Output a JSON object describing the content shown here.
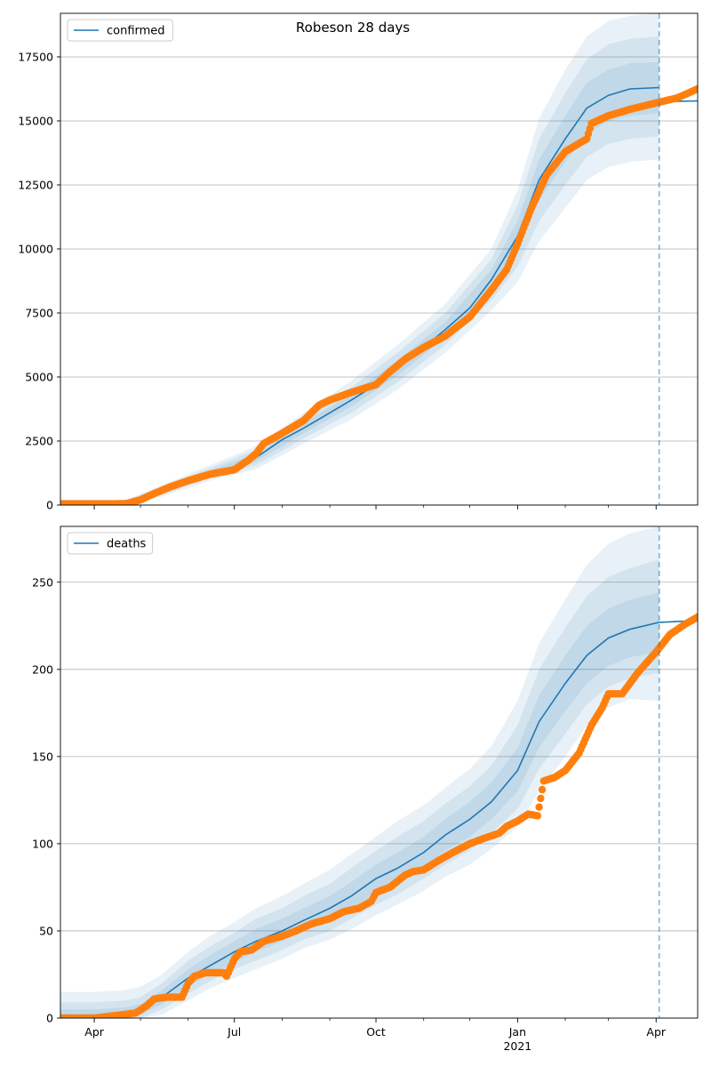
{
  "figure": {
    "title": "Robeson 28 days"
  },
  "colors": {
    "model_line": "#1f77b4",
    "observed_points": "#ff7f0e",
    "band": "#1f77b4",
    "grid": "#b0b0b0",
    "forecast_marker": "#1f77b4"
  },
  "chart_data": [
    {
      "type": "line",
      "panel": "top",
      "legend_entry": "confirmed",
      "legend_location": "upper-left",
      "grid": "horizontal",
      "ylim": [
        0,
        19200
      ],
      "yticks": [
        0,
        2500,
        5000,
        7500,
        10000,
        12500,
        15000,
        17500
      ],
      "ytick_labels": [
        "0",
        "2500",
        "5000",
        "7500",
        "10000",
        "12500",
        "15000",
        "17500"
      ],
      "xlim": [
        "2020-03-10",
        "2021-04-28"
      ],
      "xticks": [
        {
          "date": "2020-04-01",
          "label": "Apr"
        },
        {
          "date": "2020-07-01",
          "label": "Jul"
        },
        {
          "date": "2020-10-01",
          "label": "Oct"
        },
        {
          "date": "2021-01-01",
          "label": "Jan",
          "sublabel": "2021"
        },
        {
          "date": "2021-04-01",
          "label": "Apr"
        }
      ],
      "minor_xticks": [
        "2020-05-01",
        "2020-06-01",
        "2020-08-01",
        "2020-09-01",
        "2020-11-01",
        "2020-12-01",
        "2021-02-01",
        "2021-03-01",
        "2021-05-01"
      ],
      "forecast_start": "2021-04-03",
      "model": {
        "x": [
          "2020-03-10",
          "2020-04-01",
          "2020-04-20",
          "2020-05-01",
          "2020-05-15",
          "2020-06-01",
          "2020-06-15",
          "2020-07-01",
          "2020-07-15",
          "2020-08-01",
          "2020-08-15",
          "2020-09-01",
          "2020-09-15",
          "2020-10-01",
          "2020-10-15",
          "2020-11-01",
          "2020-11-15",
          "2020-12-01",
          "2020-12-15",
          "2021-01-01",
          "2021-01-15",
          "2021-02-01",
          "2021-02-15",
          "2021-03-01",
          "2021-03-15",
          "2021-04-03",
          "2021-04-28"
        ],
        "y": [
          30,
          40,
          70,
          250,
          550,
          950,
          1250,
          1500,
          1850,
          2550,
          3000,
          3600,
          4100,
          4700,
          5350,
          6150,
          6850,
          7700,
          8800,
          10500,
          12700,
          14300,
          15500,
          16000,
          16250,
          16300,
          15800
        ]
      },
      "bands": {
        "x": [
          "2020-04-20",
          "2020-05-15",
          "2020-06-15",
          "2020-07-15",
          "2020-08-15",
          "2020-09-15",
          "2020-10-15",
          "2020-11-15",
          "2020-12-15",
          "2021-01-01",
          "2021-01-15",
          "2021-02-01",
          "2021-02-15",
          "2021-03-01",
          "2021-03-15",
          "2021-04-03"
        ],
        "inner_low": [
          30,
          480,
          1150,
          1700,
          2800,
          3850,
          5050,
          6550,
          8400,
          9900,
          11900,
          13400,
          14500,
          15000,
          15200,
          15300
        ],
        "inner_high": [
          110,
          620,
          1350,
          2000,
          3200,
          4350,
          5650,
          7150,
          9200,
          11100,
          13500,
          15200,
          16500,
          17000,
          17250,
          17300
        ],
        "mid_low": [
          15,
          400,
          1050,
          1550,
          2600,
          3600,
          4800,
          6250,
          8000,
          9300,
          11100,
          12500,
          13600,
          14100,
          14300,
          14400
        ],
        "mid_high": [
          140,
          700,
          1450,
          2150,
          3400,
          4600,
          5950,
          7500,
          9600,
          11700,
          14300,
          16100,
          17400,
          18000,
          18200,
          18300
        ],
        "outer_low": [
          0,
          330,
          950,
          1400,
          2400,
          3350,
          4500,
          5950,
          7600,
          8700,
          10300,
          11600,
          12700,
          13200,
          13400,
          13500
        ],
        "outer_high": [
          170,
          780,
          1550,
          2300,
          3600,
          4850,
          6250,
          7850,
          10000,
          12300,
          15100,
          17000,
          18300,
          18900,
          19100,
          19200
        ]
      },
      "tail": {
        "x": [
          "2021-04-03",
          "2021-04-28"
        ],
        "y": [
          15750,
          15780
        ]
      },
      "observed": {
        "x": [
          "2020-03-10",
          "2020-03-25",
          "2020-04-15",
          "2020-04-22",
          "2020-05-01",
          "2020-05-10",
          "2020-05-20",
          "2020-06-01",
          "2020-06-15",
          "2020-07-01",
          "2020-07-10",
          "2020-07-15",
          "2020-07-20",
          "2020-08-01",
          "2020-08-15",
          "2020-08-25",
          "2020-09-01",
          "2020-09-15",
          "2020-10-01",
          "2020-10-10",
          "2020-10-20",
          "2020-11-01",
          "2020-11-15",
          "2020-12-01",
          "2020-12-15",
          "2020-12-25",
          "2021-01-01",
          "2021-01-10",
          "2021-01-20",
          "2021-02-01",
          "2021-02-15",
          "2021-02-18",
          "2021-03-01",
          "2021-03-15",
          "2021-04-01",
          "2021-04-15",
          "2021-04-28"
        ],
        "y": [
          50,
          50,
          50,
          60,
          200,
          450,
          700,
          950,
          1200,
          1380,
          1750,
          2000,
          2400,
          2800,
          3300,
          3900,
          4100,
          4400,
          4700,
          5200,
          5700,
          6150,
          6600,
          7350,
          8400,
          9200,
          10200,
          11600,
          12900,
          13800,
          14300,
          14900,
          15200,
          15450,
          15700,
          15900,
          16250
        ]
      }
    },
    {
      "type": "line",
      "panel": "bottom",
      "legend_entry": "deaths",
      "legend_location": "upper-left",
      "grid": "horizontal",
      "ylim": [
        0,
        282
      ],
      "yticks": [
        0,
        50,
        100,
        150,
        200,
        250
      ],
      "ytick_labels": [
        "0",
        "50",
        "100",
        "150",
        "200",
        "250"
      ],
      "xlim": [
        "2020-03-10",
        "2021-04-28"
      ],
      "xticks": [
        {
          "date": "2020-04-01",
          "label": "Apr"
        },
        {
          "date": "2020-07-01",
          "label": "Jul"
        },
        {
          "date": "2020-10-01",
          "label": "Oct"
        },
        {
          "date": "2021-01-01",
          "label": "Jan",
          "sublabel": "2021"
        },
        {
          "date": "2021-04-01",
          "label": "Apr"
        }
      ],
      "minor_xticks": [
        "2020-05-01",
        "2020-06-01",
        "2020-08-01",
        "2020-09-01",
        "2020-11-01",
        "2020-12-01",
        "2021-02-01",
        "2021-03-01",
        "2021-05-01"
      ],
      "forecast_start": "2021-04-03",
      "model": {
        "x": [
          "2020-03-10",
          "2020-04-01",
          "2020-04-20",
          "2020-05-01",
          "2020-05-15",
          "2020-06-01",
          "2020-06-15",
          "2020-07-01",
          "2020-07-15",
          "2020-08-01",
          "2020-08-15",
          "2020-09-01",
          "2020-09-15",
          "2020-10-01",
          "2020-10-15",
          "2020-11-01",
          "2020-11-15",
          "2020-12-01",
          "2020-12-15",
          "2021-01-01",
          "2021-01-15",
          "2021-02-01",
          "2021-02-15",
          "2021-03-01",
          "2021-03-15",
          "2021-04-03",
          "2021-04-28"
        ],
        "y": [
          0,
          0,
          1,
          4,
          12,
          23,
          30,
          38,
          44,
          50,
          56,
          63,
          70,
          80,
          86,
          95,
          105,
          114,
          124,
          142,
          170,
          192,
          208,
          218,
          223,
          227,
          227
        ]
      },
      "bands": {
        "x": [
          "2020-03-10",
          "2020-04-01",
          "2020-04-20",
          "2020-05-01",
          "2020-05-15",
          "2020-06-01",
          "2020-06-15",
          "2020-07-01",
          "2020-07-15",
          "2020-08-01",
          "2020-08-15",
          "2020-09-01",
          "2020-09-15",
          "2020-10-01",
          "2020-10-15",
          "2020-11-01",
          "2020-11-15",
          "2020-12-01",
          "2020-12-15",
          "2021-01-01",
          "2021-01-15",
          "2021-02-01",
          "2021-02-15",
          "2021-03-01",
          "2021-03-15",
          "2021-04-03"
        ],
        "inner_low": [
          0,
          0,
          0,
          2,
          8,
          18,
          25,
          32,
          38,
          44,
          50,
          56,
          63,
          72,
          78,
          87,
          96,
          104,
          114,
          130,
          155,
          176,
          192,
          202,
          207,
          210
        ],
        "inner_high": [
          5,
          5,
          6,
          8,
          16,
          28,
          36,
          44,
          51,
          57,
          63,
          70,
          78,
          88,
          95,
          104,
          114,
          124,
          135,
          155,
          185,
          208,
          225,
          235,
          240,
          244
        ],
        "mid_low": [
          0,
          0,
          0,
          0,
          5,
          14,
          21,
          28,
          33,
          39,
          45,
          50,
          57,
          65,
          71,
          80,
          88,
          96,
          106,
          120,
          143,
          163,
          180,
          190,
          195,
          198
        ],
        "mid_high": [
          9,
          9,
          10,
          12,
          20,
          33,
          41,
          49,
          57,
          63,
          70,
          77,
          86,
          96,
          104,
          113,
          123,
          133,
          145,
          168,
          200,
          224,
          242,
          253,
          258,
          263
        ],
        "outer_low": [
          0,
          0,
          0,
          0,
          2,
          10,
          17,
          23,
          28,
          34,
          40,
          45,
          51,
          59,
          65,
          73,
          81,
          88,
          97,
          110,
          130,
          150,
          168,
          178,
          183,
          182
        ],
        "outer_high": [
          15,
          15,
          16,
          18,
          25,
          38,
          47,
          55,
          63,
          70,
          77,
          85,
          94,
          104,
          113,
          122,
          132,
          143,
          156,
          182,
          215,
          240,
          260,
          272,
          278,
          282
        ]
      },
      "tail": {
        "x": [
          "2021-04-03",
          "2021-04-28"
        ],
        "y": [
          227,
          228
        ]
      },
      "observed": {
        "x": [
          "2020-03-10",
          "2020-04-01",
          "2020-04-20",
          "2020-04-28",
          "2020-05-05",
          "2020-05-10",
          "2020-05-18",
          "2020-05-28",
          "2020-06-01",
          "2020-06-05",
          "2020-06-12",
          "2020-06-18",
          "2020-06-24",
          "2020-06-26",
          "2020-07-01",
          "2020-07-05",
          "2020-07-12",
          "2020-07-20",
          "2020-08-01",
          "2020-08-10",
          "2020-08-20",
          "2020-09-01",
          "2020-09-10",
          "2020-09-20",
          "2020-09-28",
          "2020-10-01",
          "2020-10-10",
          "2020-10-20",
          "2020-10-25",
          "2020-11-01",
          "2020-11-10",
          "2020-11-20",
          "2020-12-01",
          "2020-12-10",
          "2020-12-20",
          "2020-12-25",
          "2021-01-01",
          "2021-01-08",
          "2021-01-14",
          "2021-01-18",
          "2021-01-25",
          "2021-02-01",
          "2021-02-10",
          "2021-02-18",
          "2021-02-25",
          "2021-03-01",
          "2021-03-10",
          "2021-03-20",
          "2021-04-01",
          "2021-04-10",
          "2021-04-20",
          "2021-04-28"
        ],
        "y": [
          0,
          0,
          2,
          3,
          7,
          11,
          12,
          12,
          20,
          24,
          26,
          26,
          26,
          24,
          34,
          38,
          39,
          44,
          47,
          50,
          54,
          57,
          61,
          63,
          67,
          72,
          75,
          82,
          84,
          85,
          90,
          95,
          100,
          103,
          106,
          110,
          113,
          117,
          116,
          136,
          138,
          142,
          152,
          168,
          178,
          186,
          186,
          198,
          210,
          220,
          226,
          230
        ]
      }
    }
  ]
}
